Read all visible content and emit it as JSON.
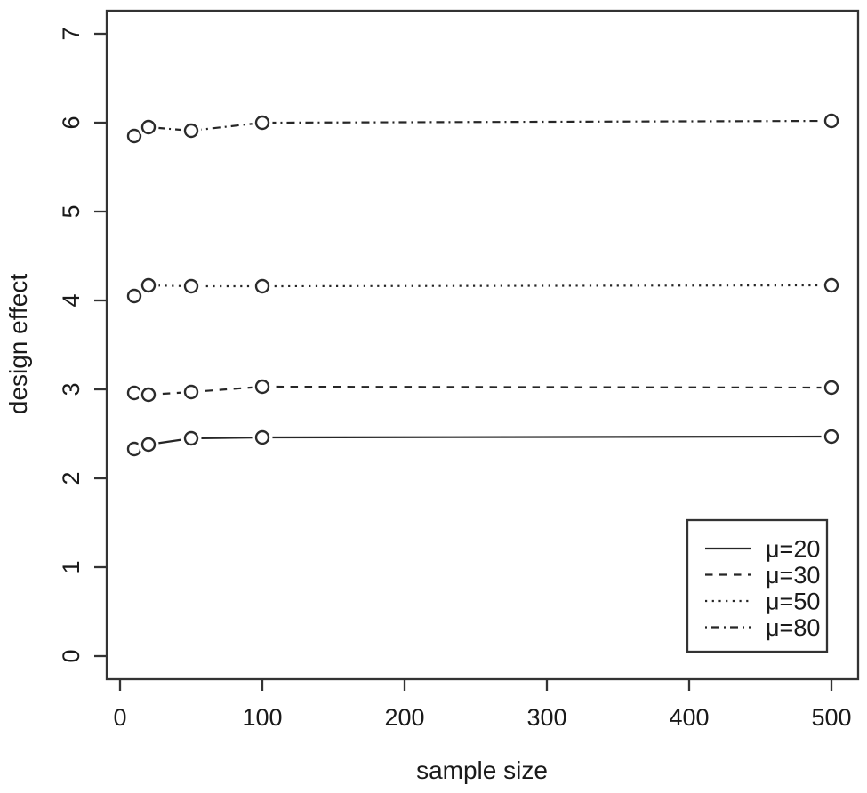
{
  "chart_data": {
    "type": "line",
    "title": "",
    "xlabel": "sample size",
    "ylabel": "design effect",
    "x": [
      10,
      20,
      50,
      100,
      500
    ],
    "series": [
      {
        "name": "μ=20",
        "linestyle": "solid",
        "values": [
          2.33,
          2.38,
          2.45,
          2.46,
          2.47
        ]
      },
      {
        "name": "μ=30",
        "linestyle": "dashed",
        "values": [
          2.96,
          2.94,
          2.97,
          3.03,
          3.02
        ]
      },
      {
        "name": "μ=50",
        "linestyle": "dotted",
        "values": [
          4.05,
          4.17,
          4.16,
          4.16,
          4.17
        ]
      },
      {
        "name": "μ=80",
        "linestyle": "dashdot",
        "values": [
          5.85,
          5.95,
          5.91,
          6.0,
          6.02
        ]
      }
    ],
    "xticks": [
      0,
      100,
      200,
      300,
      400,
      500
    ],
    "yticks": [
      0,
      1,
      2,
      3,
      4,
      5,
      6,
      7
    ],
    "xlim": [
      0,
      500
    ],
    "ylim": [
      0,
      7
    ],
    "marker": "open-circle",
    "grid": false,
    "legend_position": "bottom-right",
    "line_color": "#262626",
    "axis_color": "#333333",
    "background_color": "#ffffff"
  }
}
